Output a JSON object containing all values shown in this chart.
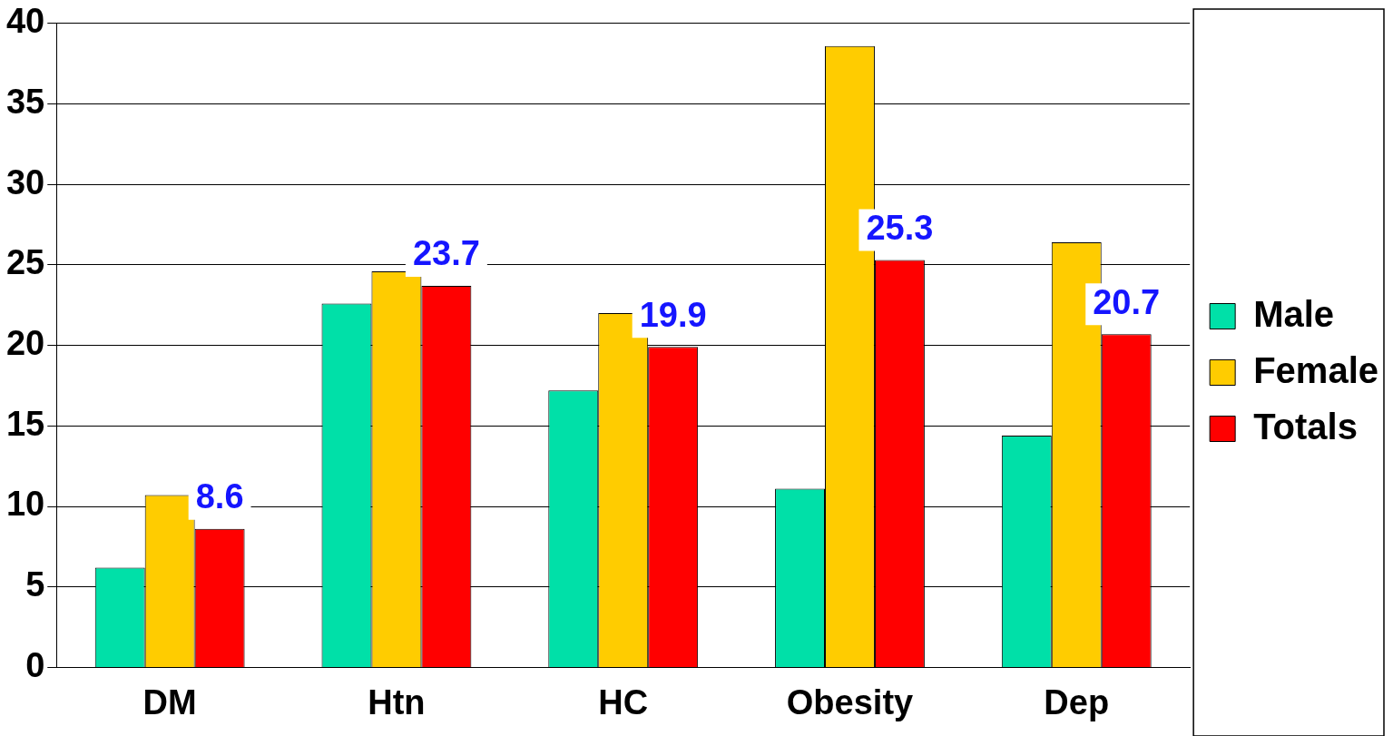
{
  "chart_data": {
    "type": "bar",
    "categories": [
      "DM",
      "Htn",
      "HC",
      "Obesity",
      "Dep"
    ],
    "series": [
      {
        "name": "Male",
        "color": "#00e0a8",
        "values": [
          6.2,
          22.6,
          17.2,
          11.1,
          14.4
        ]
      },
      {
        "name": "Female",
        "color": "#ffcc00",
        "values": [
          10.7,
          24.6,
          22.0,
          38.6,
          26.4
        ]
      },
      {
        "name": "Totals",
        "color": "#ff0000",
        "values": [
          8.6,
          23.7,
          19.9,
          25.3,
          20.7
        ],
        "value_labels": [
          "8.6",
          "23.7",
          "19.9",
          "25.3",
          "20.7"
        ]
      }
    ],
    "ylim": [
      0,
      40
    ],
    "yticks": [
      0,
      5,
      10,
      15,
      20,
      25,
      30,
      35,
      40
    ],
    "grid": "y",
    "legend": "right"
  }
}
